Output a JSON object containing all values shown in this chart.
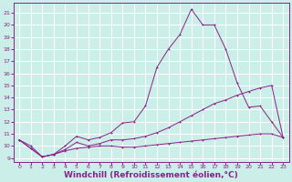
{
  "background_color": "#cceee8",
  "grid_color": "#ffffff",
  "line_color": "#882288",
  "xlabel": "Windchill (Refroidissement éolien,°C)",
  "xlabel_fontsize": 6.5,
  "ylim": [
    8.7,
    21.8
  ],
  "xlim": [
    -0.5,
    23.5
  ],
  "yticks": [
    9,
    10,
    11,
    12,
    13,
    14,
    15,
    16,
    17,
    18,
    19,
    20,
    21
  ],
  "xticks": [
    0,
    1,
    2,
    3,
    4,
    5,
    6,
    7,
    8,
    9,
    10,
    11,
    12,
    13,
    14,
    15,
    16,
    17,
    18,
    19,
    20,
    21,
    22,
    23
  ],
  "line1_x": [
    0,
    1,
    2,
    3,
    4,
    5,
    6,
    7,
    8,
    9,
    10,
    11,
    12,
    13,
    14,
    15,
    16,
    17,
    18,
    19,
    20,
    21,
    22,
    23
  ],
  "line1_y": [
    10.5,
    10.0,
    9.1,
    9.3,
    10.0,
    10.8,
    10.5,
    10.7,
    11.1,
    11.9,
    12.0,
    13.3,
    16.5,
    18.0,
    19.2,
    21.3,
    20.0,
    20.0,
    18.0,
    15.2,
    13.2,
    13.3,
    12.0,
    10.7
  ],
  "line2_x": [
    0,
    1,
    2,
    3,
    4,
    5,
    6,
    7,
    8,
    9,
    10,
    11,
    12,
    13,
    14,
    15,
    16,
    17,
    18,
    19,
    20,
    21,
    22,
    23
  ],
  "line2_y": [
    10.5,
    9.8,
    9.1,
    9.3,
    9.7,
    10.3,
    10.0,
    10.2,
    10.5,
    10.5,
    10.6,
    10.8,
    11.1,
    11.5,
    12.0,
    12.5,
    13.0,
    13.5,
    13.8,
    14.2,
    14.5,
    14.8,
    15.0,
    10.7
  ],
  "line3_x": [
    0,
    1,
    2,
    3,
    4,
    5,
    6,
    7,
    8,
    9,
    10,
    11,
    12,
    13,
    14,
    15,
    16,
    17,
    18,
    19,
    20,
    21,
    22,
    23
  ],
  "line3_y": [
    10.5,
    9.8,
    9.1,
    9.3,
    9.6,
    9.8,
    9.9,
    10.0,
    10.0,
    9.9,
    9.9,
    10.0,
    10.1,
    10.2,
    10.3,
    10.4,
    10.5,
    10.6,
    10.7,
    10.8,
    10.9,
    11.0,
    11.0,
    10.7
  ]
}
